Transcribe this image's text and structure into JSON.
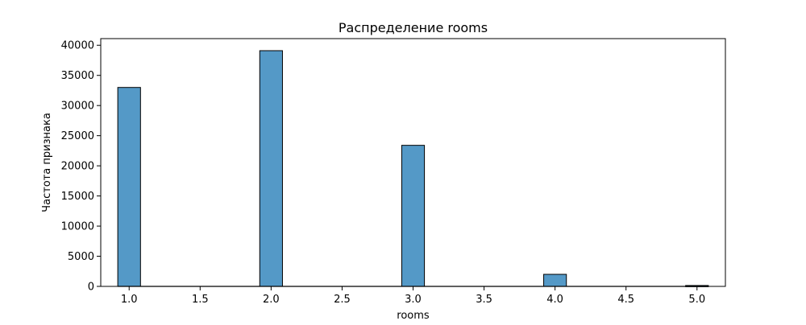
{
  "chart_data": {
    "type": "bar",
    "title": "Распределение rooms",
    "xlabel": "rooms",
    "ylabel": "Частота признака",
    "xlim": [
      0.8,
      5.2
    ],
    "ylim": [
      0,
      41100
    ],
    "xticks": [
      1.0,
      1.5,
      2.0,
      2.5,
      3.0,
      3.5,
      4.0,
      4.5,
      5.0
    ],
    "xtick_labels": [
      "1.0",
      "1.5",
      "2.0",
      "2.5",
      "3.0",
      "3.5",
      "4.0",
      "4.5",
      "5.0"
    ],
    "yticks": [
      0,
      5000,
      10000,
      15000,
      20000,
      25000,
      30000,
      35000,
      40000
    ],
    "ytick_labels": [
      "0",
      "5000",
      "10000",
      "15000",
      "20000",
      "25000",
      "30000",
      "35000",
      "40000"
    ],
    "bar_width": 0.16,
    "bars": [
      {
        "x": 1.0,
        "value": 33000
      },
      {
        "x": 2.0,
        "value": 39100
      },
      {
        "x": 3.0,
        "value": 23400
      },
      {
        "x": 4.0,
        "value": 2000
      },
      {
        "x": 5.0,
        "value": 150
      }
    ],
    "grid": false,
    "bar_color": "#5499c7",
    "edge_color": "#000000"
  }
}
